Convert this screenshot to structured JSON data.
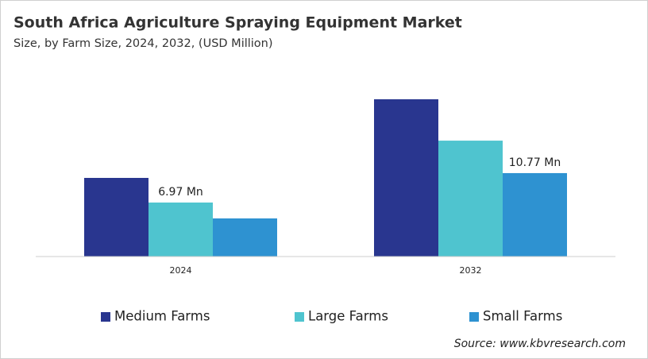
{
  "chart_data": {
    "type": "bar",
    "title": "South Africa Agriculture Spraying Equipment Market",
    "subtitle": "Size, by Farm Size, 2024, 2032, (USD Million)",
    "categories": [
      "2024",
      "2032"
    ],
    "series": [
      {
        "name": "Medium Farms",
        "color": "#29368f",
        "values": [
          10.15,
          20.3
        ]
      },
      {
        "name": "Large Farms",
        "color": "#4fc4cf",
        "values": [
          6.97,
          14.96
        ],
        "value_labels": [
          "6.97 Mn",
          null
        ]
      },
      {
        "name": "Small Farms",
        "color": "#2e92d1",
        "values": [
          4.92,
          10.77
        ],
        "value_labels": [
          null,
          "10.77 Mn"
        ]
      }
    ],
    "ylim": [
      0,
      22
    ],
    "source": "Source: www.kbvresearch.com"
  }
}
